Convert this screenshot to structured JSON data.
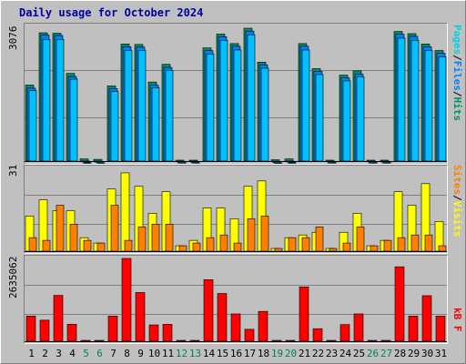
{
  "title": "Daily usage for October 2024",
  "colors": {
    "hits": "#009060",
    "files": "#0080ff",
    "files_face": "#00c0ff",
    "pages": "#00d0e0",
    "visits": "#ffff00",
    "sites": "#ff8000",
    "kbf": "#ff0000",
    "weekend_label": "#00805c",
    "weekday_label": "#000000",
    "grid": "#808080"
  },
  "labels": {
    "top_ymax": "3076",
    "mid_ymax": "31",
    "bot_ymax": "2635062",
    "top_right": {
      "pages": "Pages",
      "sep1": "/",
      "files": "Files",
      "sep2": "/",
      "hits": "Hits"
    },
    "mid_right": {
      "sites": "Sites",
      "sep": "/",
      "visits": "Visits"
    },
    "bot_right": {
      "kbf": "kB F"
    }
  },
  "chart_data": [
    {
      "type": "bar",
      "panel": "hits-files-pages",
      "categories": [
        "1",
        "2",
        "3",
        "4",
        "5",
        "6",
        "7",
        "8",
        "9",
        "10",
        "11",
        "12",
        "13",
        "14",
        "15",
        "16",
        "17",
        "18",
        "19",
        "20",
        "21",
        "22",
        "23",
        "24",
        "25",
        "26",
        "27",
        "28",
        "29",
        "30",
        "31"
      ],
      "weekend_days": [
        "5",
        "6",
        "12",
        "13",
        "19",
        "20",
        "26",
        "27"
      ],
      "ylim": [
        0,
        3076
      ],
      "series": [
        {
          "name": "Hits",
          "values": [
            1760,
            2970,
            2960,
            2030,
            50,
            40,
            1740,
            2710,
            2700,
            1830,
            2240,
            0,
            0,
            2620,
            2940,
            2720,
            3076,
            2290,
            30,
            50,
            2720,
            2140,
            0,
            1990,
            2090,
            0,
            0,
            3000,
            2950,
            2710,
            2560
          ]
        },
        {
          "name": "Files",
          "values": [
            1730,
            2960,
            2950,
            2000,
            40,
            30,
            1720,
            2690,
            2680,
            1800,
            2210,
            0,
            0,
            2600,
            2920,
            2700,
            3050,
            2270,
            20,
            40,
            2700,
            2120,
            0,
            1970,
            2060,
            0,
            0,
            2980,
            2930,
            2690,
            2540
          ]
        },
        {
          "name": "Pages",
          "values": [
            1750,
            2960,
            2960,
            2020,
            50,
            40,
            1730,
            2700,
            2700,
            1820,
            2230,
            0,
            0,
            2610,
            2940,
            2710,
            3070,
            2280,
            30,
            50,
            2710,
            2130,
            0,
            1980,
            2080,
            0,
            0,
            2990,
            2940,
            2700,
            2550
          ]
        }
      ]
    },
    {
      "type": "bar",
      "panel": "visits-sites",
      "categories": [
        "1",
        "2",
        "3",
        "4",
        "5",
        "6",
        "7",
        "8",
        "9",
        "10",
        "11",
        "12",
        "13",
        "14",
        "15",
        "16",
        "17",
        "18",
        "19",
        "20",
        "21",
        "22",
        "23",
        "24",
        "25",
        "26",
        "27",
        "28",
        "29",
        "30",
        "31"
      ],
      "ylim": [
        0,
        31
      ],
      "series": [
        {
          "name": "Visits",
          "values": [
            13,
            19,
            15,
            15,
            5,
            3,
            23,
            29,
            24,
            14,
            22,
            2,
            4,
            16,
            16,
            12,
            24,
            26,
            1,
            5,
            6,
            7,
            1,
            7,
            14,
            2,
            4,
            22,
            17,
            25,
            11
          ]
        },
        {
          "name": "Sites",
          "values": [
            5,
            4,
            17,
            10,
            4,
            3,
            17,
            4,
            9,
            10,
            10,
            2,
            3,
            5,
            6,
            3,
            12,
            13,
            1,
            5,
            5,
            9,
            1,
            3,
            9,
            2,
            4,
            5,
            6,
            6,
            2
          ]
        }
      ]
    },
    {
      "type": "bar",
      "panel": "kbf",
      "categories": [
        "1",
        "2",
        "3",
        "4",
        "5",
        "6",
        "7",
        "8",
        "9",
        "10",
        "11",
        "12",
        "13",
        "14",
        "15",
        "16",
        "17",
        "18",
        "19",
        "20",
        "21",
        "22",
        "23",
        "24",
        "25",
        "26",
        "27",
        "28",
        "29",
        "30",
        "31"
      ],
      "ylim": [
        0,
        2635062
      ],
      "series": [
        {
          "name": "kB F",
          "values": [
            800000,
            670000,
            1460000,
            540000,
            0,
            0,
            800000,
            2635062,
            1550000,
            520000,
            540000,
            0,
            0,
            1960000,
            1520000,
            870000,
            380000,
            950000,
            0,
            0,
            1730000,
            400000,
            0,
            530000,
            870000,
            0,
            0,
            2370000,
            800000,
            1450000,
            800000
          ]
        }
      ]
    }
  ]
}
